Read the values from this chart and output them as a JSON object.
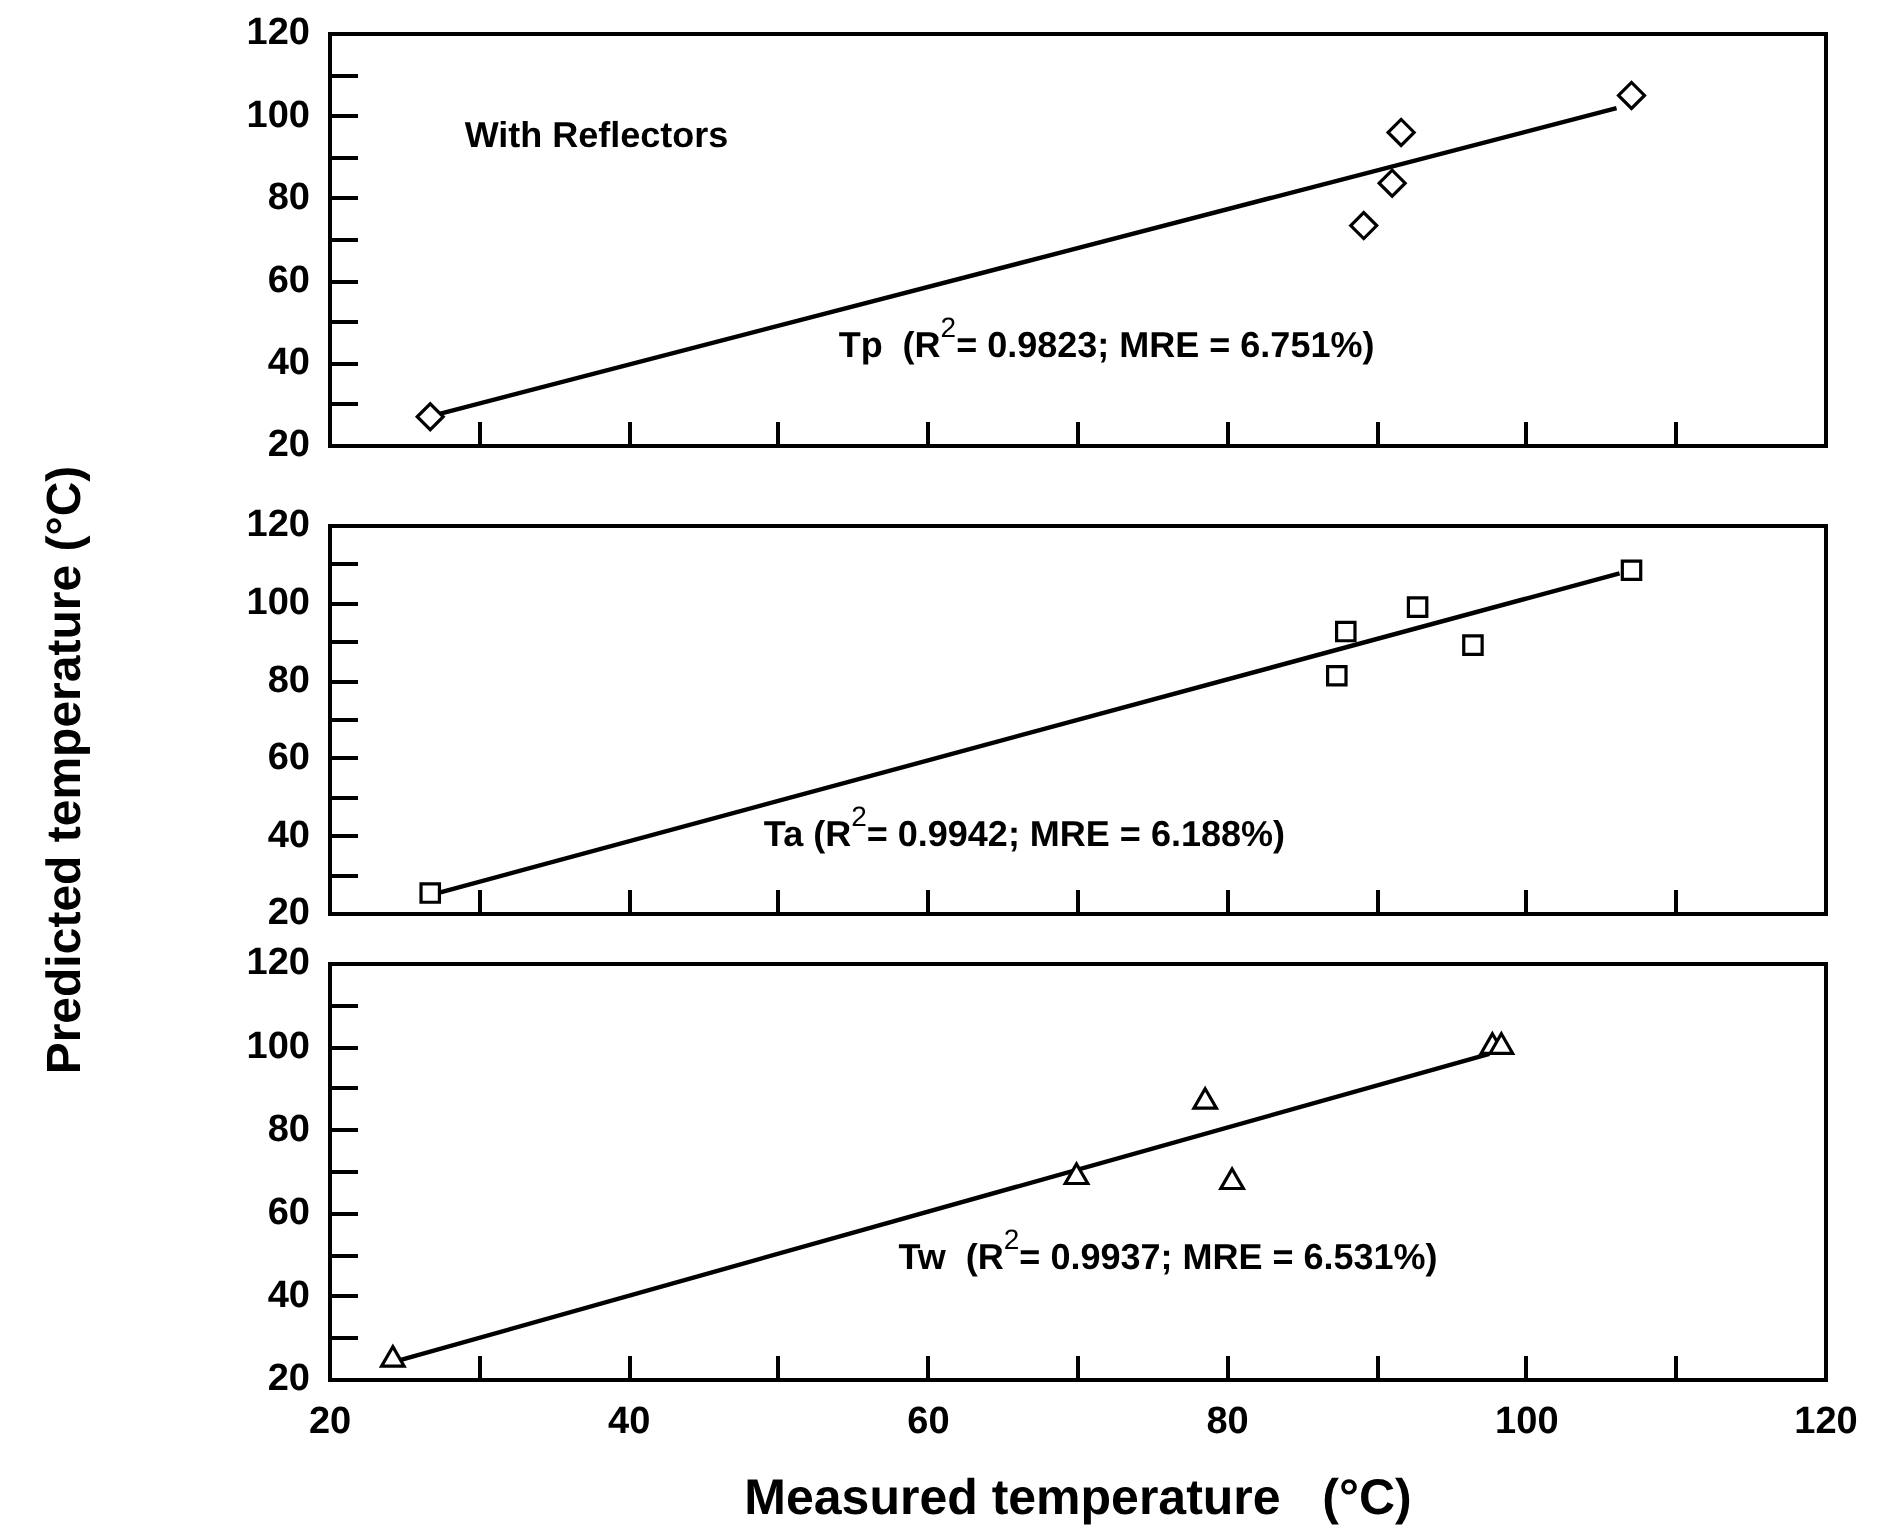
{
  "chart_data": [
    {
      "type": "scatter",
      "annotations": [
        "With Reflectors",
        "Tp  (R$^{2}$= 0.9823; MRE = 6.751%)"
      ],
      "xlim": [
        20,
        120
      ],
      "xticks": [
        20,
        {
          "value": 30,
          "label": null
        },
        40,
        {
          "value": 50,
          "label": null
        },
        60,
        {
          "value": 70,
          "label": null
        },
        80,
        {
          "value": 90,
          "label": null
        },
        100,
        {
          "value": 110,
          "label": null
        },
        120
      ],
      "ylim": [
        20,
        120
      ],
      "yticks": [
        20,
        {
          "value": 30,
          "label": null
        },
        40,
        {
          "value": 50,
          "label": null
        },
        60,
        {
          "value": 70,
          "label": null
        },
        80,
        {
          "value": 90,
          "label": null
        },
        100,
        {
          "value": 110,
          "label": null
        },
        120
      ],
      "tick_labels": "y",
      "grid": false,
      "legend": false,
      "series": [
        {
          "color": "#000000",
          "marker": "diamond",
          "x": [
            26.7,
            89.1,
            91.0,
            91.6,
            107.0
          ],
          "values": [
            27.1,
            73.5,
            83.8,
            96.1,
            105.1
          ]
        },
        {
          "type": "line",
          "color": "#000000",
          "marker": "none",
          "line_style": "solid",
          "x": [
            27,
            106
          ],
          "values": [
            27.5,
            102
          ]
        }
      ]
    },
    {
      "type": "scatter",
      "ylabel": "Predicted temperature  (°C)",
      "annotations": [
        "Ta (R$^{2}$= 0.9942; MRE = 6.188%)"
      ],
      "xlim": [
        20,
        120
      ],
      "xticks": [
        20,
        {
          "value": 30,
          "label": null
        },
        40,
        {
          "value": 50,
          "label": null
        },
        60,
        {
          "value": 70,
          "label": null
        },
        80,
        {
          "value": 90,
          "label": null
        },
        100,
        {
          "value": 110,
          "label": null
        },
        120
      ],
      "ylim": [
        20,
        120
      ],
      "yticks": [
        20,
        {
          "value": 30,
          "label": null
        },
        40,
        {
          "value": 50,
          "label": null
        },
        60,
        {
          "value": 70,
          "label": null
        },
        80,
        {
          "value": 90,
          "label": null
        },
        100,
        {
          "value": 110,
          "label": null
        },
        120
      ],
      "tick_labels": "y",
      "grid": false,
      "legend": false,
      "series": [
        {
          "color": "#000000",
          "marker": "square",
          "x": [
            26.7,
            87.3,
            87.9,
            92.7,
            96.4,
            107.0
          ],
          "values": [
            25.4,
            81.4,
            92.8,
            99.1,
            89.3,
            108.6
          ]
        },
        {
          "type": "line",
          "color": "#000000",
          "marker": "none",
          "line_style": "solid",
          "x": [
            27,
            106.2
          ],
          "values": [
            25.2,
            107.8
          ]
        }
      ]
    },
    {
      "type": "scatter",
      "xlabel": "Measured temperature   (°C)",
      "annotations": [
        "Tw  (R$^{2}$= 0.9937; MRE = 6.531%)"
      ],
      "xlim": [
        20,
        120
      ],
      "xticks": [
        20,
        {
          "value": 30,
          "label": null
        },
        40,
        {
          "value": 50,
          "label": null
        },
        60,
        {
          "value": 70,
          "label": null
        },
        80,
        {
          "value": 90,
          "label": null
        },
        100,
        {
          "value": 110,
          "label": null
        },
        120
      ],
      "ylim": [
        20,
        120
      ],
      "yticks": [
        20,
        {
          "value": 30,
          "label": null
        },
        40,
        {
          "value": 50,
          "label": null
        },
        60,
        {
          "value": 70,
          "label": null
        },
        80,
        {
          "value": 90,
          "label": null
        },
        100,
        {
          "value": 110,
          "label": null
        },
        120
      ],
      "grid": false,
      "legend": false,
      "series": [
        {
          "color": "#000000",
          "marker": "triangle",
          "x": [
            24.2,
            69.9,
            78.5,
            80.3,
            97.7,
            98.3
          ],
          "values": [
            24.9,
            68.8,
            86.9,
            67.6,
            100.1,
            100.1
          ]
        },
        {
          "type": "line",
          "color": "#000000",
          "marker": "none",
          "line_style": "solid",
          "x": [
            24.2,
            97.5
          ],
          "values": [
            24.3,
            98.4
          ]
        }
      ]
    }
  ]
}
